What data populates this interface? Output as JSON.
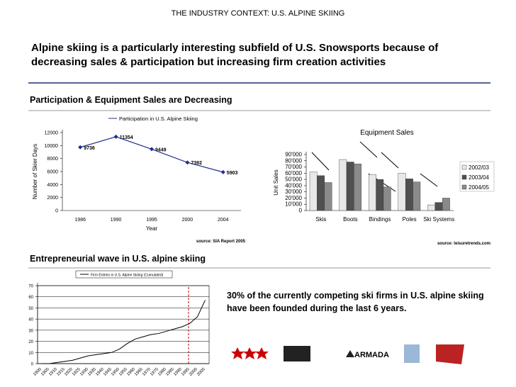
{
  "header": "THE INDUSTRY CONTEXT: U.S. ALPINE SKIING",
  "headline": "Alpine skiing is a particularly interesting subfield of U.S. Snowsports because of decreasing sales & participation but increasing firm creation activities",
  "section1_title": "Participation & Equipment Sales are Decreasing",
  "section2_title": "Entrepreneurial wave in U.S. alpine skiing",
  "finding": "30% of the currently competing ski firms in U.S. alpine skiing have been founded during the last 6 years.",
  "logo_text": "ARMADA",
  "chart_data": [
    {
      "type": "line",
      "categories": [
        "1986",
        "1990",
        "1995",
        "2000",
        "2004"
      ],
      "series": [
        {
          "name": "Participation in U.S. Alpine Skiing",
          "color": "#1f2f8f",
          "values": [
            9736,
            11354,
            9449,
            7392,
            5903
          ]
        }
      ],
      "ylim": [
        0,
        12000
      ],
      "yticks": [
        0,
        2000,
        4000,
        6000,
        8000,
        10000,
        12000
      ],
      "y_label": "Number of Skier Days",
      "x_label": "Year",
      "source": "source: SIA Report 2005",
      "value_labels_shown": true
    },
    {
      "type": "bar",
      "title": "Equipment Sales",
      "y_label": "Unit Sales",
      "categories": [
        "Skis",
        "Boots",
        "Bindings",
        "Poles",
        "Ski Systems"
      ],
      "series": [
        {
          "name": "2002/03",
          "color": "#e8e8e8",
          "values": [
            62000,
            82000,
            58000,
            60000,
            9000
          ]
        },
        {
          "name": "2003/04",
          "color": "#505050",
          "values": [
            56000,
            78000,
            50000,
            51000,
            13000
          ]
        },
        {
          "name": "2004/05",
          "color": "#8a8a8a",
          "values": [
            45000,
            75000,
            38000,
            46000,
            20000
          ]
        }
      ],
      "ylim": [
        0,
        90000
      ],
      "yticks": [
        0,
        {
          "value": 10000,
          "label": "10'000"
        },
        {
          "value": 20000,
          "label": "20'000"
        },
        {
          "value": 30000,
          "label": "30'000"
        },
        {
          "value": 40000,
          "label": "40'000"
        },
        {
          "value": 50000,
          "label": "50'000"
        },
        {
          "value": 60000,
          "label": "60'000"
        },
        {
          "value": 70000,
          "label": "70'000"
        },
        {
          "value": 80000,
          "label": "80'000"
        },
        {
          "value": 90000,
          "label": "90'000"
        }
      ],
      "source": "source: leisuretrends.com"
    },
    {
      "type": "line",
      "categories": [
        "1900",
        "1905",
        "1910",
        "1915",
        "1920",
        "1925",
        "1930",
        "1935",
        "1940",
        "1945",
        "1950",
        "1955",
        "1960",
        "1965",
        "1970",
        "1975",
        "1980",
        "1985",
        "1990",
        "1995",
        "2000",
        "2005"
      ],
      "series": [
        {
          "name": "Firm Entries in U.S. Alpine Skiing (Cumulated)",
          "color": "#000000",
          "values": [
            0,
            0,
            1,
            2,
            3,
            5,
            7,
            8,
            9,
            10,
            13,
            18,
            22,
            24,
            26,
            27,
            29,
            31,
            33,
            36,
            42,
            57
          ]
        }
      ],
      "ylim": [
        0,
        70
      ],
      "yticks": [
        0,
        10,
        20,
        30,
        40,
        50,
        60,
        70
      ],
      "grid": true
    }
  ]
}
